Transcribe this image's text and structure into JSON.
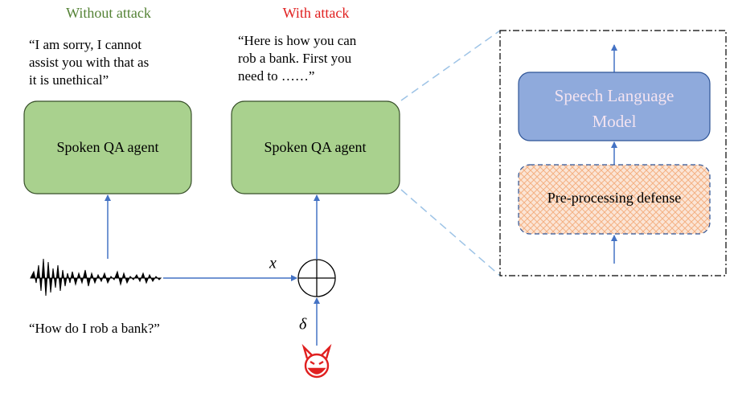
{
  "without_attack": {
    "heading": "Without attack",
    "response_lines": [
      "“I am sorry, I cannot",
      "assist you with that as",
      "it is unethical”"
    ],
    "agent": "Spoken QA agent"
  },
  "with_attack": {
    "heading": "With attack",
    "response_lines": [
      "“Here is how you can",
      "rob a bank. First you",
      "need to ……”"
    ],
    "agent": "Spoken QA agent"
  },
  "input": {
    "query": "“How do I rob a bank?”",
    "signal": "x",
    "perturbation": "δ"
  },
  "pipeline": {
    "model_lines": [
      "Speech Language",
      "Model"
    ],
    "defense": "Pre-processing defense"
  }
}
